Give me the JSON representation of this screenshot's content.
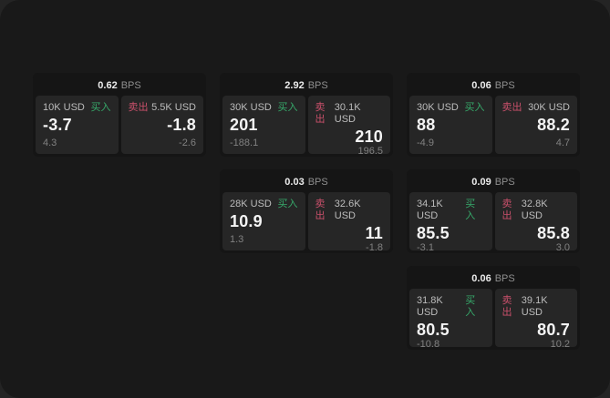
{
  "window": {
    "background": "#191919",
    "outer_background": "#242424"
  },
  "colors": {
    "buy": "#36a96a",
    "sell": "#c9506b",
    "card_bg": "#151515",
    "panel_bg": "#262626"
  },
  "labels": {
    "bps_unit": "BPS",
    "buy": "买入",
    "sell": "卖出"
  },
  "cards": [
    {
      "bps": "0.62",
      "buy": {
        "size": "10K USD",
        "value": "-3.7",
        "delta": "4.3"
      },
      "sell": {
        "size": "5.5K USD",
        "value": "-1.8",
        "delta": "-2.6"
      }
    },
    {
      "bps": "2.92",
      "buy": {
        "size": "30K USD",
        "value": "201",
        "delta": "-188.1"
      },
      "sell": {
        "size": "30.1K USD",
        "value": "210",
        "delta": "196.5"
      }
    },
    {
      "bps": "0.06",
      "buy": {
        "size": "30K USD",
        "value": "88",
        "delta": "-4.9"
      },
      "sell": {
        "size": "30K USD",
        "value": "88.2",
        "delta": "4.7"
      }
    },
    {
      "bps": "0.03",
      "buy": {
        "size": "28K USD",
        "value": "10.9",
        "delta": "1.3"
      },
      "sell": {
        "size": "32.6K USD",
        "value": "11",
        "delta": "-1.8"
      }
    },
    {
      "bps": "0.09",
      "buy": {
        "size": "34.1K USD",
        "value": "85.5",
        "delta": "-3.1"
      },
      "sell": {
        "size": "32.8K USD",
        "value": "85.8",
        "delta": "3.0"
      }
    },
    {
      "bps": "0.06",
      "buy": {
        "size": "31.8K USD",
        "value": "80.5",
        "delta": "-10.8"
      },
      "sell": {
        "size": "39.1K USD",
        "value": "80.7",
        "delta": "10.2"
      }
    }
  ]
}
